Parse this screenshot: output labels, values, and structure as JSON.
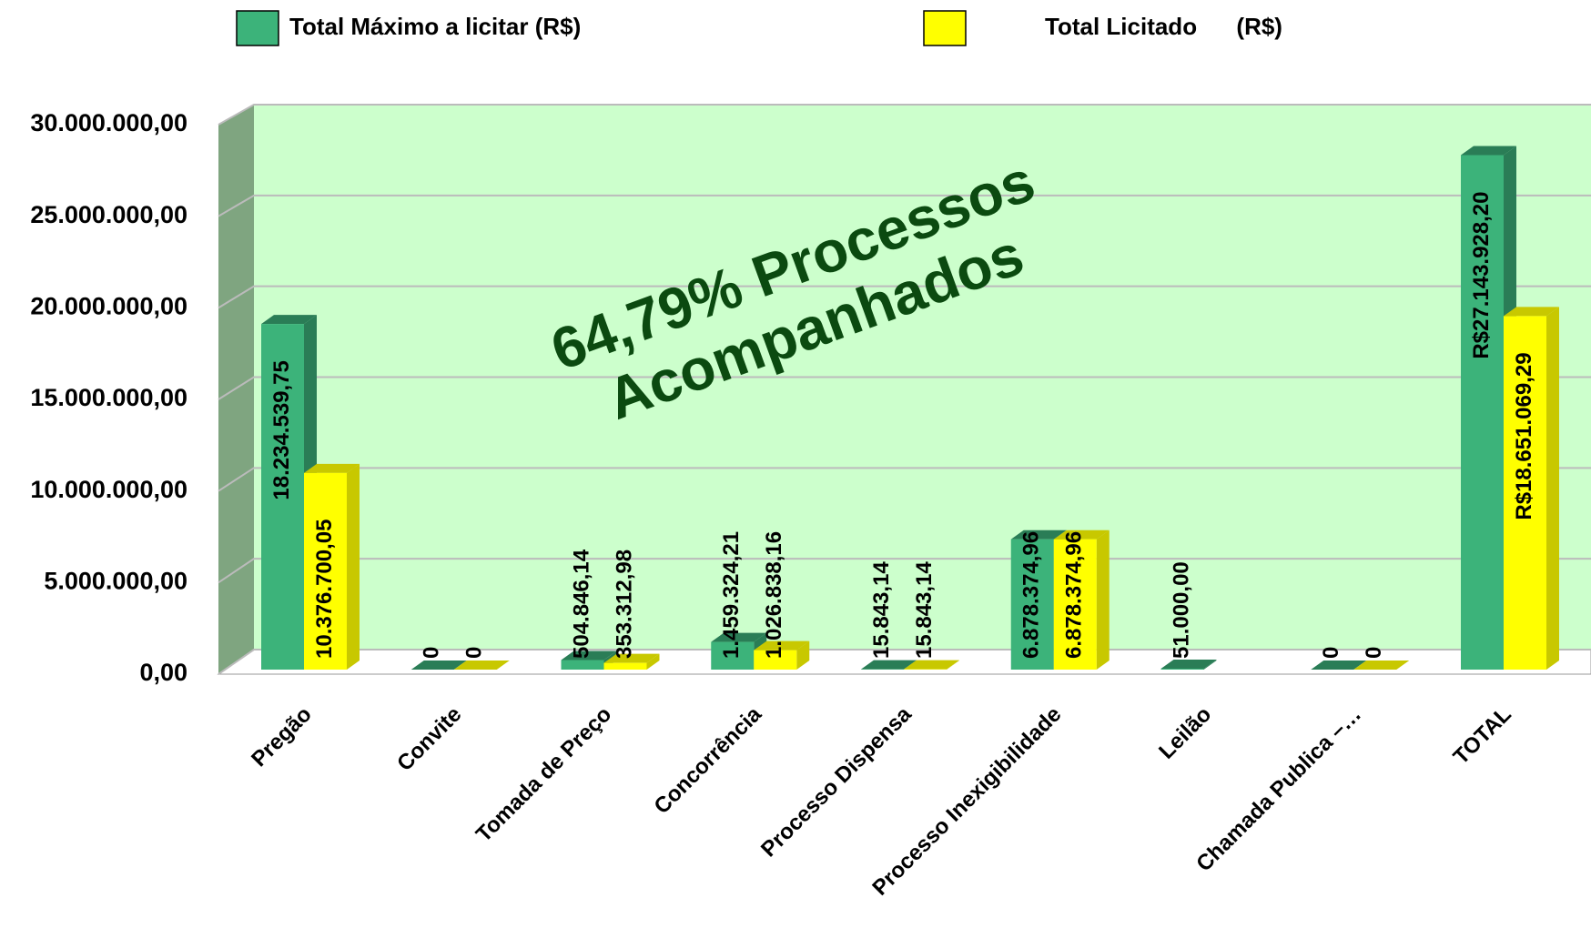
{
  "chart_data": {
    "type": "bar",
    "categories": [
      "Pregão",
      "Convite",
      "Tomada de Preço",
      "Concorrência",
      "Processo Dispensa",
      "Processo Inexigibilidade",
      "Leilão",
      "Chamada Publica –…",
      "TOTAL"
    ],
    "series": [
      {
        "name": "Total Máximo a licitar (R$)",
        "color": "#3cb37a",
        "values": [
          18234539.75,
          0,
          504846.14,
          1459324.21,
          15843.14,
          6878374.96,
          51000,
          0,
          27143928.2
        ],
        "value_labels": [
          "18.234.539,75",
          "0",
          "504.846,14",
          "1.459.324,21",
          "15.843,14",
          "6.878.374,96",
          "51.000,00",
          "0",
          "R$27.143.928,20"
        ]
      },
      {
        "name": "Total Licitado      (R$)",
        "color": "#ffff00",
        "values": [
          10376700.05,
          0,
          353312.98,
          1026838.16,
          15843.14,
          6878374.96,
          null,
          0,
          18651069.29
        ],
        "value_labels": [
          "10.376.700,05",
          "0",
          "353.312,98",
          "1.026.838,16",
          "15.843,14",
          "6.878.374,96",
          null,
          "0",
          "R$18.651.069,29"
        ]
      }
    ],
    "ylim": [
      0,
      30000000
    ],
    "yticks": [
      {
        "value": 0,
        "label": "0,00"
      },
      {
        "value": 5000000,
        "label": "5.000.000,00"
      },
      {
        "value": 10000000,
        "label": "10.000.000,00"
      },
      {
        "value": 15000000,
        "label": "15.000.000,00"
      },
      {
        "value": 20000000,
        "label": "20.000.000,00"
      },
      {
        "value": 25000000,
        "label": "25.000.000,00"
      },
      {
        "value": 30000000,
        "label": "30.000.000,00"
      }
    ],
    "grid": true,
    "legend": "top",
    "annotation": [
      "64,79% Processos",
      "Acompanhados"
    ]
  }
}
